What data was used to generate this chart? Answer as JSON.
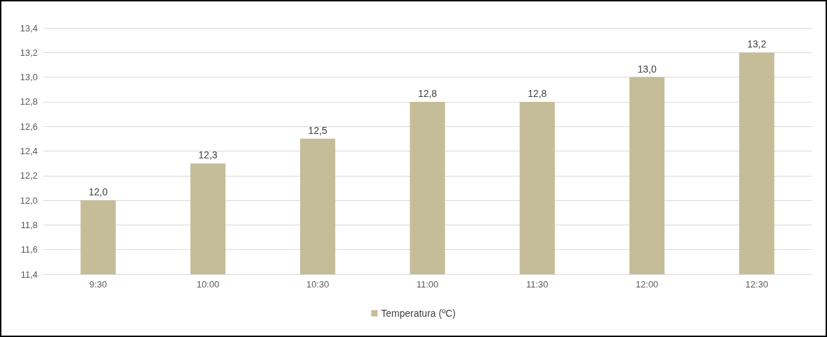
{
  "chart_data": {
    "type": "bar",
    "categories": [
      "9:30",
      "10:00",
      "10:30",
      "11:00",
      "11:30",
      "12:00",
      "12:30"
    ],
    "series": [
      {
        "name": "Temperatura (ºC)",
        "color": "#c4bd97",
        "values": [
          12.0,
          12.3,
          12.5,
          12.8,
          12.8,
          13.0,
          13.2
        ],
        "value_labels": [
          "12,0",
          "12,3",
          "12,5",
          "12,8",
          "12,8",
          "13,0",
          "13,2"
        ]
      }
    ],
    "ylim": [
      11.4,
      13.4
    ],
    "yticks": [
      {
        "value": 11.4,
        "label": "11,4"
      },
      {
        "value": 11.6,
        "label": "11,6"
      },
      {
        "value": 11.8,
        "label": "11,8"
      },
      {
        "value": 12.0,
        "label": "12,0"
      },
      {
        "value": 12.2,
        "label": "12,2"
      },
      {
        "value": 12.4,
        "label": "12,4"
      },
      {
        "value": 12.6,
        "label": "12,6"
      },
      {
        "value": 12.8,
        "label": "12,8"
      },
      {
        "value": 13.0,
        "label": "13,0"
      },
      {
        "value": 13.2,
        "label": "13,2"
      },
      {
        "value": 13.4,
        "label": "13,4"
      }
    ],
    "grid": "y",
    "legend": "bottom"
  }
}
